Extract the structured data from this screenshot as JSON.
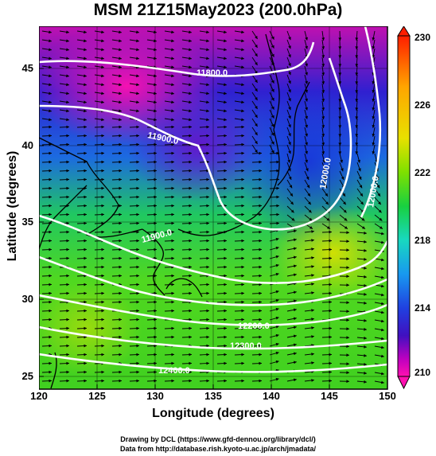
{
  "title": "MSM 21Z15May2023 (200.0hPa)",
  "axes": {
    "xlabel": "Longitude (degrees)",
    "ylabel": "Latitude  (degrees)",
    "xticks": [
      "120",
      "125",
      "130",
      "135",
      "140",
      "145",
      "150"
    ],
    "yticks": [
      "45",
      "40",
      "35",
      "30",
      "25"
    ]
  },
  "colorbar": {
    "ticks": [
      "230",
      "226",
      "222",
      "218",
      "214",
      "210"
    ],
    "colors": [
      "#ff1e00",
      "#ffa500",
      "#e8e000",
      "#7fe000",
      "#18d040",
      "#18d8c0",
      "#1898f0",
      "#2040e0",
      "#4010c0",
      "#c000c0",
      "#ff10b0"
    ]
  },
  "contours": [
    {
      "label": "11800.0"
    },
    {
      "label": "11900.0"
    },
    {
      "label": "11900.0"
    },
    {
      "label": "12000.0"
    },
    {
      "label": "12000.0"
    },
    {
      "label": "12200.0"
    },
    {
      "label": "12300.0"
    },
    {
      "label": "12400.0"
    }
  ],
  "credit": {
    "line1": "Drawing by DCL (https://www.gfd-dennou.org/library/dcl/)",
    "line2": "Data from http://database.rish.kyoto-u.ac.jp/arch/jmadata/"
  }
}
